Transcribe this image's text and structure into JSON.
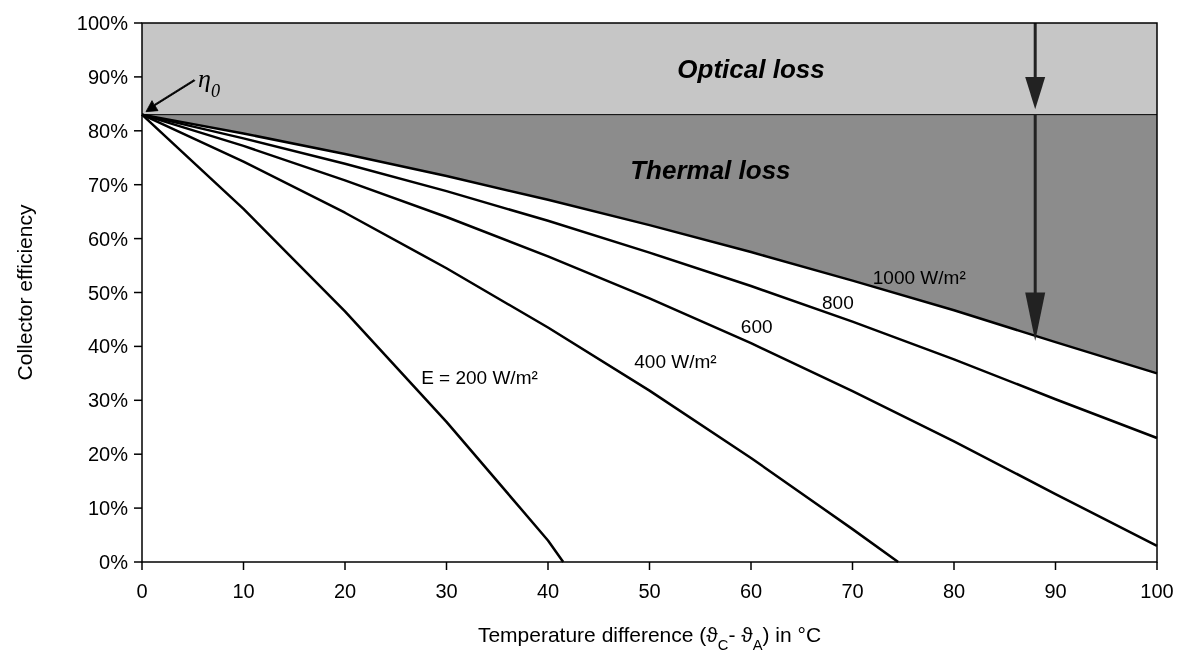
{
  "chart_data": {
    "type": "line",
    "xlabel": "Temperature difference (ϑ$_{C}$- ϑ$_{A}$) in °C",
    "ylabel": "Collector efficiency",
    "xlim": [
      0,
      100
    ],
    "ylim": [
      0,
      100
    ],
    "xticks": [
      0,
      10,
      20,
      30,
      40,
      50,
      60,
      70,
      80,
      90,
      100
    ],
    "yticks": [
      {
        "value": 0,
        "label": "0%"
      },
      {
        "value": 10,
        "label": "10%"
      },
      {
        "value": 20,
        "label": "20%"
      },
      {
        "value": 30,
        "label": "30%"
      },
      {
        "value": 40,
        "label": "40%"
      },
      {
        "value": 50,
        "label": "50%"
      },
      {
        "value": 60,
        "label": "60%"
      },
      {
        "value": 70,
        "label": "70%"
      },
      {
        "value": 80,
        "label": "80%"
      },
      {
        "value": 90,
        "label": "90%"
      },
      {
        "value": 100,
        "label": "100%"
      }
    ],
    "grid": false,
    "legend": false,
    "line_style": "solid",
    "marker": "none",
    "series": [
      {
        "name": "E = 200 W/m²",
        "color": "#000000",
        "x": [
          0,
          10,
          20,
          30,
          40,
          41.5
        ],
        "values": [
          83,
          65.5,
          46.5,
          26,
          4,
          0
        ]
      },
      {
        "name": "400 W/m²",
        "color": "#000000",
        "x": [
          0,
          10,
          20,
          30,
          40,
          50,
          60,
          70,
          74.5
        ],
        "values": [
          83,
          74.3,
          64.8,
          54.5,
          43.5,
          31.8,
          19.3,
          6.1,
          0
        ]
      },
      {
        "name": "600",
        "color": "#000000",
        "x": [
          0,
          10,
          20,
          30,
          40,
          50,
          60,
          70,
          80,
          90,
          100
        ],
        "values": [
          83,
          77.2,
          70.8,
          64,
          56.7,
          48.9,
          40.6,
          31.7,
          22.4,
          12.6,
          3
        ]
      },
      {
        "name": "800",
        "color": "#000000",
        "x": [
          0,
          10,
          20,
          30,
          40,
          50,
          60,
          70,
          80,
          90,
          100
        ],
        "values": [
          83,
          78.6,
          73.9,
          68.8,
          63.3,
          57.4,
          51.2,
          44.6,
          37.6,
          30.2,
          23
        ]
      },
      {
        "name": "1000 W/m²",
        "color": "#000000",
        "x": [
          0,
          10,
          20,
          30,
          40,
          50,
          60,
          70,
          80,
          90,
          100
        ],
        "values": [
          83,
          79.5,
          75.7,
          71.6,
          67.2,
          62.5,
          57.5,
          52.2,
          46.7,
          40.8,
          35
        ],
        "lower": [
          83,
          79.5,
          75.7,
          71.6,
          67.2,
          62.5,
          57.5,
          52.2,
          46.7,
          40.8,
          35
        ],
        "upper": [
          83,
          83,
          83,
          83,
          83,
          83,
          83,
          83,
          83,
          83,
          83
        ]
      }
    ],
    "ref_lines": [
      {
        "axis": "y",
        "value": 83
      }
    ],
    "bands": [
      {
        "axis": "y",
        "from": 83,
        "to": 100,
        "label": "Optical loss",
        "color": "#c6c6c6"
      }
    ],
    "annotations": [
      {
        "text": "η$_{0}$",
        "x": 0,
        "y": 83
      },
      "Thermal loss"
    ]
  }
}
